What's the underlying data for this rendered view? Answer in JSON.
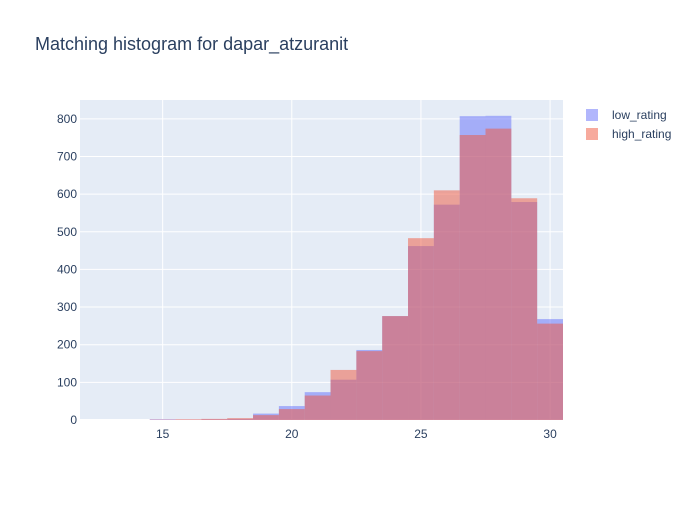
{
  "chart_data": {
    "type": "bar",
    "title": "Matching histogram for dapar_atzuranit",
    "xlabel": "",
    "ylabel": "",
    "barmode": "overlay",
    "x_range": [
      11.8,
      30.5
    ],
    "x_ticks": [
      15,
      20,
      25,
      30
    ],
    "y_range": [
      0,
      850
    ],
    "y_ticks": [
      0,
      100,
      200,
      300,
      400,
      500,
      600,
      700,
      800
    ],
    "grid": true,
    "legend_position": "top-right",
    "plot_background": "#e5ecf6",
    "bins": [
      [
        13.5,
        14.5
      ],
      [
        14.5,
        15.5
      ],
      [
        15.5,
        16.5
      ],
      [
        16.5,
        17.5
      ],
      [
        17.5,
        18.5
      ],
      [
        18.5,
        19.5
      ],
      [
        19.5,
        20.5
      ],
      [
        20.5,
        21.5
      ],
      [
        21.5,
        22.5
      ],
      [
        22.5,
        23.5
      ],
      [
        23.5,
        24.5
      ],
      [
        24.5,
        25.5
      ],
      [
        25.5,
        26.5
      ],
      [
        26.5,
        27.5
      ],
      [
        27.5,
        28.5
      ],
      [
        28.5,
        29.5
      ],
      [
        29.5,
        30.5
      ]
    ],
    "series": [
      {
        "name": "low_rating",
        "color": "#636efa",
        "opacity": 0.5,
        "values": [
          0,
          2,
          1,
          2,
          3,
          17,
          37,
          74,
          107,
          186,
          276,
          462,
          572,
          807,
          808,
          579,
          268
        ]
      },
      {
        "name": "high_rating",
        "color": "#ef553b",
        "opacity": 0.5,
        "values": [
          0,
          1,
          2,
          3,
          5,
          13,
          29,
          65,
          133,
          183,
          276,
          483,
          610,
          757,
          774,
          589,
          256
        ]
      }
    ]
  }
}
